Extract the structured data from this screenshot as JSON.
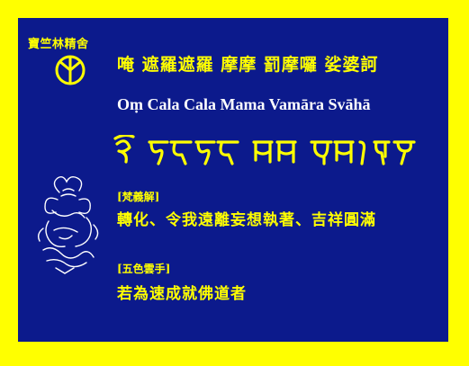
{
  "society_name": "寶竺林精舍",
  "emblem_icon": "dharma-wheel-icon",
  "mantra": {
    "chinese": "唵 遮羅遮羅 摩摩 罰摩囉 娑婆訶",
    "romanized": "Oṃ Cala Cala Mama Vamāra Svāhā",
    "script_icon": "siddham-script-mantra"
  },
  "deity_icon": "deity-figure-icon",
  "sanskrit_meaning": {
    "label": "[梵義解]",
    "text": "轉化、令我遠離妄想執著、吉祥圓滿"
  },
  "five_color_hand": {
    "label": "[五色雲手]",
    "text": "若為速成就佛道者"
  },
  "colors": {
    "border": "#ffff00",
    "background": "#0c1a8c",
    "text_accent": "#ffff00",
    "text_roman": "#ffffff"
  }
}
